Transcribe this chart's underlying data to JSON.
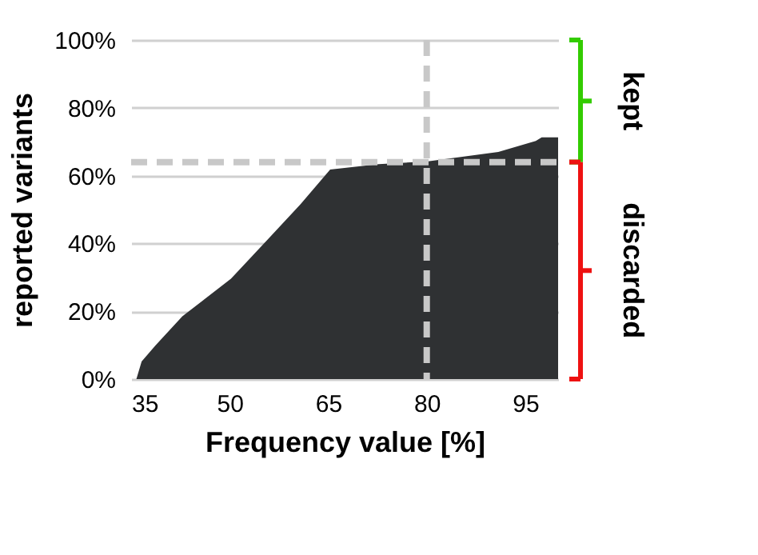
{
  "chart_data": {
    "type": "area",
    "xlabel": "Frequency value [%]",
    "ylabel": "reported variants",
    "x": [
      35.8,
      36.6,
      38.7,
      42.8,
      50.2,
      55.9,
      60.8,
      65.3,
      72.7,
      80.2,
      90.9,
      96.6,
      97.5,
      100
    ],
    "series": [
      {
        "color": "#2f3133",
        "values": [
          0,
          5.2,
          9.9,
          18.5,
          29.6,
          41.4,
          51.6,
          61.8,
          63.4,
          64.2,
          67,
          70.2,
          71.3,
          71.3
        ]
      }
    ],
    "xlim": [
      35,
      100
    ],
    "ylim": [
      0,
      100
    ],
    "xticks": [
      35,
      50,
      65,
      80,
      95
    ],
    "yticks": [
      {
        "value": 0,
        "label": "0%"
      },
      {
        "value": 20,
        "label": "20%"
      },
      {
        "value": 40,
        "label": "40%"
      },
      {
        "value": 60,
        "label": "60%"
      },
      {
        "value": 80,
        "label": "80%"
      },
      {
        "value": 100,
        "label": "100%"
      }
    ],
    "grid": "y",
    "ref_lines": [
      {
        "axis": "x",
        "value": 80,
        "color": "#c8c8c8",
        "line_style": "dashed"
      },
      {
        "axis": "y",
        "value": 64,
        "color": "#c8c8c8",
        "line_style": "dashed"
      }
    ],
    "annotations": [
      "kept",
      "discarded"
    ]
  }
}
